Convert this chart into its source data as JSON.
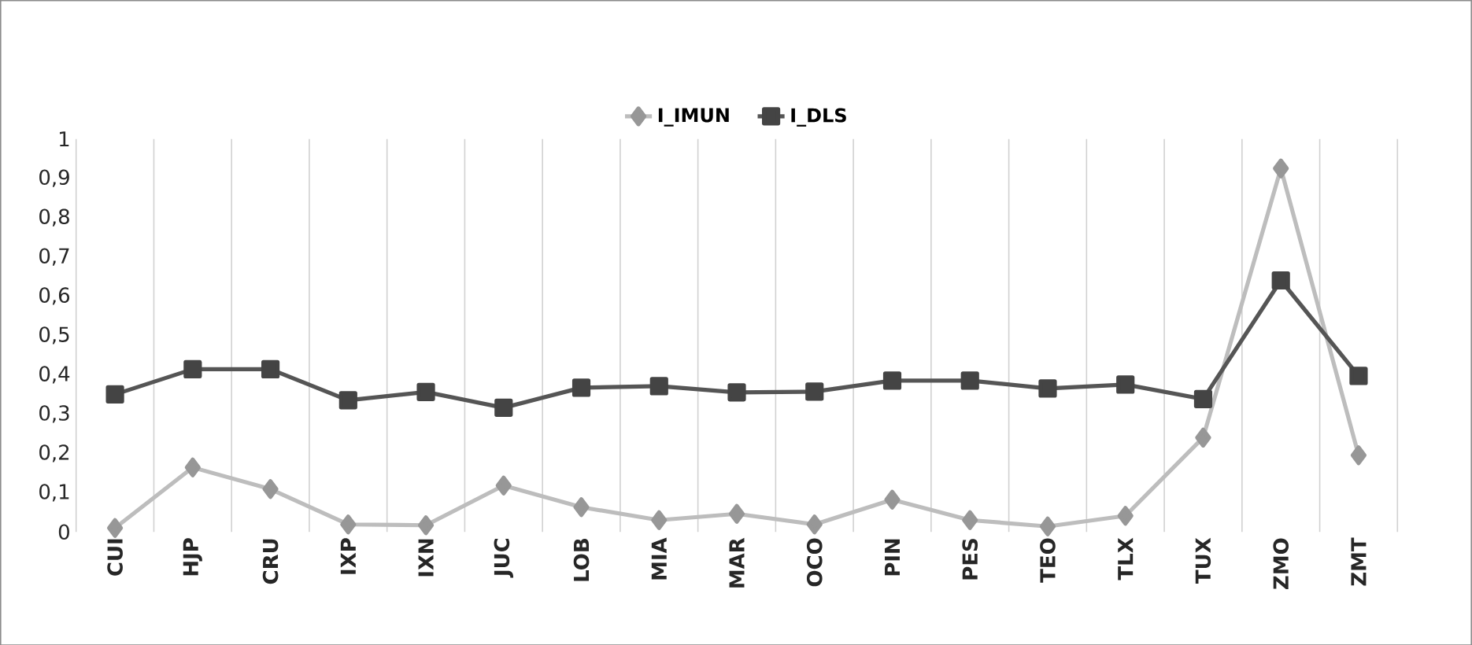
{
  "chart_data": {
    "type": "line",
    "categories": [
      "CUI",
      "HJP",
      "CRU",
      "IXP",
      "IXN",
      "JUC",
      "LOB",
      "MIA",
      "MAR",
      "OCO",
      "PIN",
      "PES",
      "TEO",
      "TLX",
      "TUX",
      "ZMO",
      "ZMT"
    ],
    "series": [
      {
        "name": "I_IMUN",
        "color": "#bdbdbd",
        "marker": "diamond",
        "values": [
          0.01,
          0.164,
          0.109,
          0.019,
          0.017,
          0.118,
          0.063,
          0.03,
          0.046,
          0.019,
          0.082,
          0.03,
          0.014,
          0.041,
          0.24,
          0.925,
          0.195
        ]
      },
      {
        "name": "I_DLS",
        "color": "#555555",
        "marker": "square",
        "values": [
          0.35,
          0.414,
          0.414,
          0.335,
          0.356,
          0.316,
          0.367,
          0.371,
          0.355,
          0.357,
          0.385,
          0.385,
          0.365,
          0.375,
          0.338,
          0.64,
          0.397
        ]
      }
    ],
    "ylim": [
      0,
      1
    ],
    "yticks": [
      0,
      {
        "value": 0.1,
        "label": "0,1"
      },
      {
        "value": 0.2,
        "label": "0,2"
      },
      {
        "value": 0.3,
        "label": "0,3"
      },
      {
        "value": 0.4,
        "label": "0,4"
      },
      {
        "value": 0.5,
        "label": "0,5"
      },
      {
        "value": 0.6,
        "label": "0,6"
      },
      {
        "value": 0.7,
        "label": "0,7"
      },
      {
        "value": 0.8,
        "label": "0,8"
      },
      {
        "value": 0.9,
        "label": "0,9"
      },
      1
    ],
    "grid": "x",
    "legend": "top",
    "line_style": "solid"
  }
}
